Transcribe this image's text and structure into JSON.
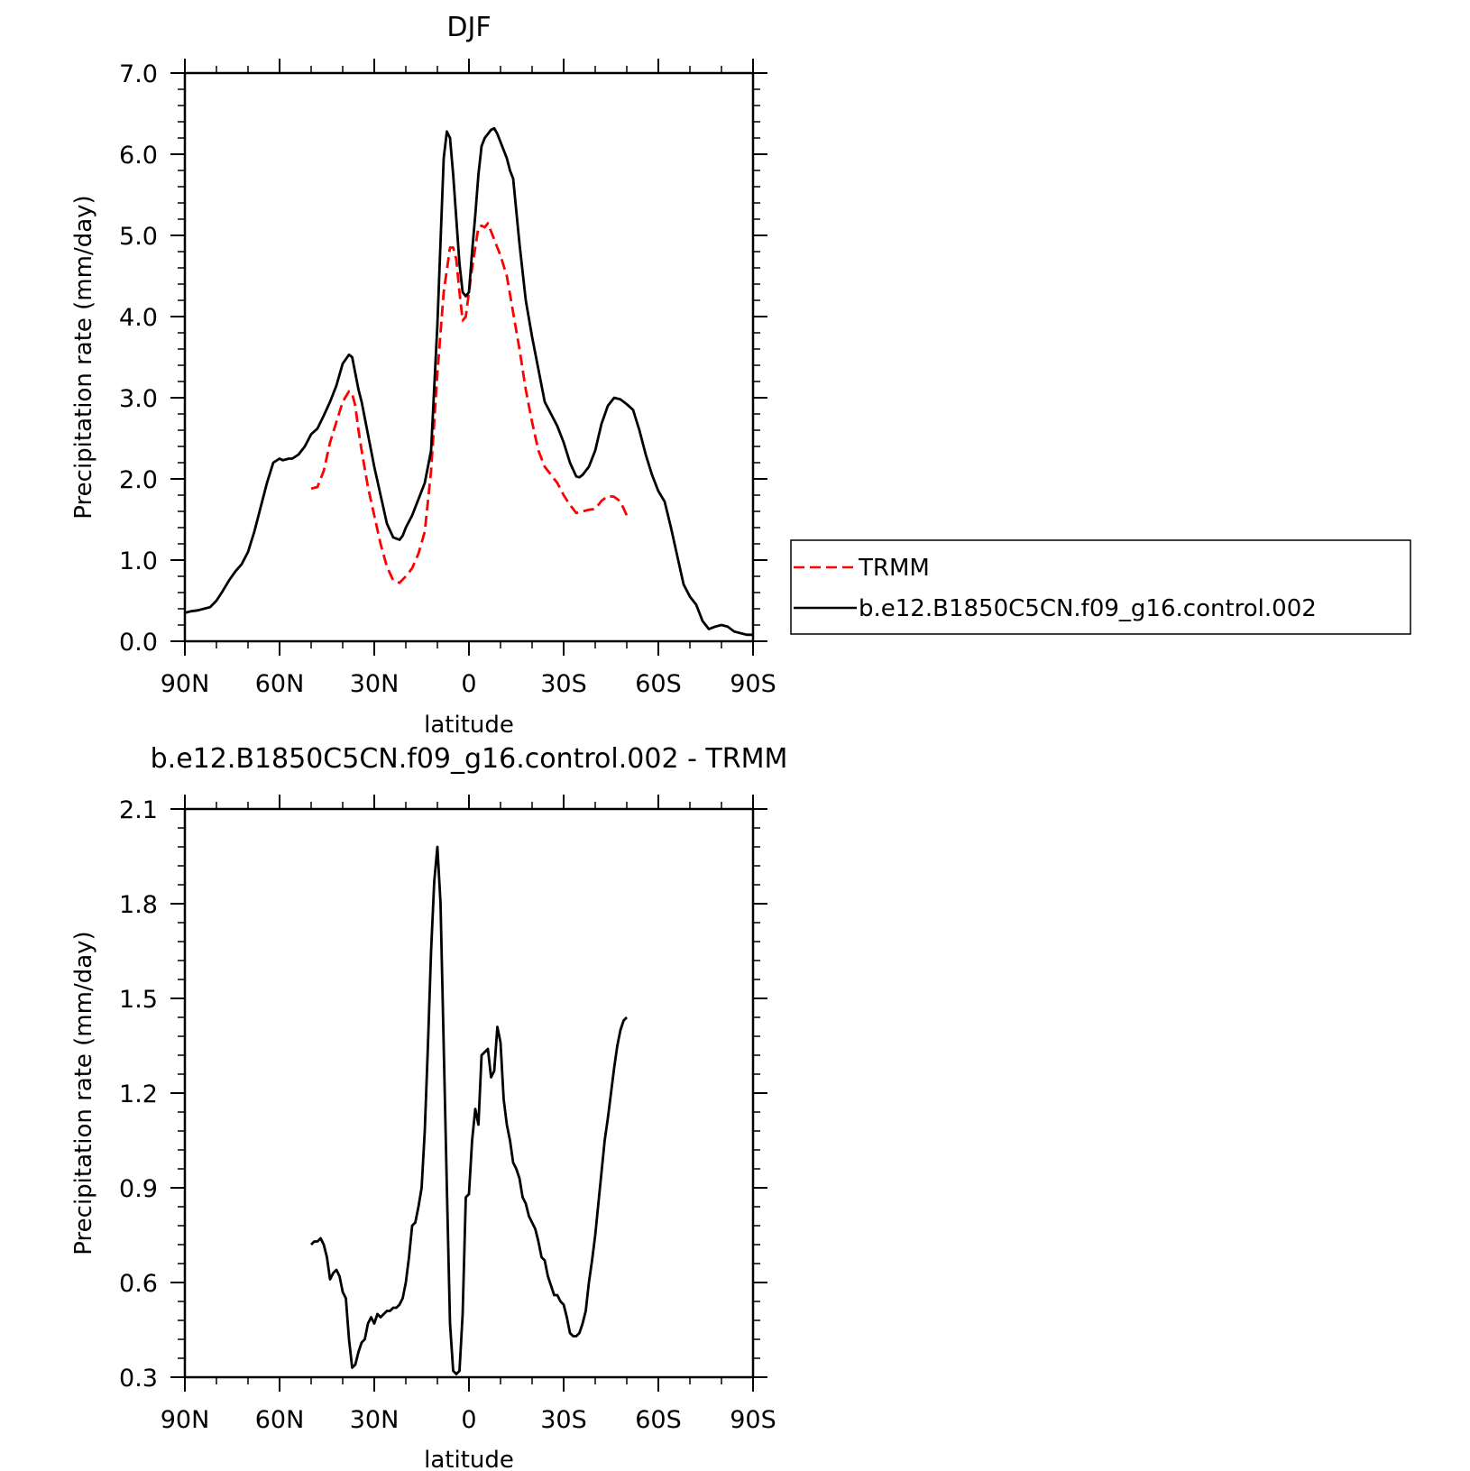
{
  "chart_data": [
    {
      "type": "line",
      "title": "DJF",
      "xlabel": "latitude",
      "ylabel": "Precipitation rate (mm/day)",
      "xlim": [
        90,
        -90
      ],
      "ylim": [
        0,
        7
      ],
      "xticks": [
        90,
        60,
        30,
        0,
        -30,
        -60,
        -90
      ],
      "xtick_labels": [
        "90N",
        "60N",
        "30N",
        "0",
        "30S",
        "60S",
        "90S"
      ],
      "yticks": [
        0,
        1,
        2,
        3,
        4,
        5,
        6,
        7
      ],
      "ytick_labels": [
        "0.0",
        "1.0",
        "2.0",
        "3.0",
        "4.0",
        "5.0",
        "6.0",
        "7.0"
      ],
      "legend_position": "right",
      "series": [
        {
          "name": "TRMM",
          "color": "#ff0000",
          "dash": "dashed",
          "x": [
            50,
            48,
            46,
            44,
            42,
            40,
            38,
            37,
            36,
            35,
            34,
            32,
            30,
            28,
            26,
            24,
            22,
            20,
            18,
            16,
            14,
            12,
            10,
            8,
            6,
            5,
            4,
            3,
            2,
            1,
            0,
            -1,
            -2,
            -3,
            -4,
            -5,
            -6,
            -7,
            -8,
            -10,
            -12,
            -14,
            -16,
            -18,
            -20,
            -22,
            -24,
            -26,
            -28,
            -30,
            -32,
            -34,
            -36,
            -38,
            -40,
            -42,
            -44,
            -46,
            -48,
            -50
          ],
          "values": [
            1.88,
            1.9,
            2.1,
            2.45,
            2.7,
            2.95,
            3.08,
            3.05,
            2.9,
            2.6,
            2.35,
            1.9,
            1.55,
            1.2,
            0.92,
            0.75,
            0.72,
            0.8,
            0.9,
            1.08,
            1.35,
            2.1,
            3.3,
            4.3,
            4.85,
            4.85,
            4.7,
            4.3,
            3.95,
            4.0,
            4.3,
            4.6,
            4.85,
            5.1,
            5.12,
            5.1,
            5.15,
            5.05,
            4.95,
            4.75,
            4.5,
            4.05,
            3.6,
            3.1,
            2.7,
            2.35,
            2.15,
            2.05,
            1.95,
            1.8,
            1.68,
            1.58,
            1.6,
            1.62,
            1.63,
            1.73,
            1.79,
            1.78,
            1.72,
            1.55
          ]
        },
        {
          "name": "b.e12.B1850C5CN.f09_g16.control.002",
          "color": "#000000",
          "dash": "solid",
          "x": [
            90,
            88,
            86,
            84,
            82,
            80,
            78,
            76,
            74,
            72,
            70,
            68,
            66,
            64,
            62,
            60,
            59,
            58,
            57,
            56,
            54,
            52,
            50,
            48,
            46,
            44,
            42,
            40,
            38,
            37,
            36,
            35,
            34,
            32,
            30,
            28,
            26,
            24,
            22,
            21,
            20,
            18,
            16,
            14,
            12,
            10,
            8,
            7,
            6,
            5,
            4,
            3,
            2,
            1,
            0,
            -1,
            -2,
            -3,
            -4,
            -5,
            -6,
            -7,
            -8,
            -9,
            -10,
            -11,
            -12,
            -13,
            -14,
            -16,
            -18,
            -20,
            -22,
            -24,
            -26,
            -28,
            -30,
            -32,
            -34,
            -35,
            -36,
            -38,
            -40,
            -42,
            -44,
            -46,
            -48,
            -50,
            -52,
            -54,
            -56,
            -58,
            -60,
            -62,
            -64,
            -66,
            -68,
            -70,
            -72,
            -74,
            -76,
            -78,
            -80,
            -82,
            -84,
            -86,
            -88,
            -90
          ],
          "values": [
            0.35,
            0.37,
            0.38,
            0.4,
            0.42,
            0.5,
            0.62,
            0.75,
            0.86,
            0.95,
            1.1,
            1.35,
            1.65,
            1.95,
            2.2,
            2.25,
            2.23,
            2.24,
            2.25,
            2.25,
            2.3,
            2.4,
            2.55,
            2.62,
            2.78,
            2.95,
            3.15,
            3.42,
            3.53,
            3.5,
            3.3,
            3.1,
            2.95,
            2.55,
            2.15,
            1.8,
            1.45,
            1.28,
            1.25,
            1.3,
            1.4,
            1.55,
            1.75,
            1.95,
            2.35,
            3.9,
            5.95,
            6.28,
            6.2,
            5.75,
            5.2,
            4.65,
            4.3,
            4.25,
            4.3,
            4.8,
            5.25,
            5.75,
            6.1,
            6.2,
            6.25,
            6.3,
            6.32,
            6.25,
            6.15,
            6.05,
            5.95,
            5.8,
            5.7,
            4.9,
            4.2,
            3.75,
            3.35,
            2.95,
            2.8,
            2.65,
            2.45,
            2.2,
            2.03,
            2.02,
            2.05,
            2.15,
            2.35,
            2.68,
            2.9,
            3.0,
            2.98,
            2.92,
            2.85,
            2.6,
            2.3,
            2.05,
            1.85,
            1.72,
            1.4,
            1.05,
            0.7,
            0.55,
            0.45,
            0.25,
            0.15,
            0.18,
            0.2,
            0.18,
            0.12,
            0.1,
            0.08,
            0.08
          ]
        }
      ]
    },
    {
      "type": "line",
      "title": "b.e12.B1850C5CN.f09_g16.control.002 - TRMM",
      "xlabel": "latitude",
      "ylabel": "Precipitation rate (mm/day)",
      "xlim": [
        90,
        -90
      ],
      "ylim": [
        0.3,
        2.1
      ],
      "xticks": [
        90,
        60,
        30,
        0,
        -30,
        -60,
        -90
      ],
      "xtick_labels": [
        "90N",
        "60N",
        "30N",
        "0",
        "30S",
        "60S",
        "90S"
      ],
      "yticks": [
        0.3,
        0.6,
        0.9,
        1.2,
        1.5,
        1.8,
        2.1
      ],
      "ytick_labels": [
        "0.3",
        "0.6",
        "0.9",
        "1.2",
        "1.5",
        "1.8",
        "2.1"
      ],
      "series": [
        {
          "color": "#000000",
          "dash": "solid",
          "x": [
            50,
            49,
            48,
            47,
            46,
            45,
            44,
            43,
            42,
            41,
            40,
            39,
            38,
            37,
            36,
            35,
            34,
            33,
            32,
            31,
            30,
            29,
            28,
            27,
            26,
            25,
            24,
            23,
            22,
            21,
            20,
            19,
            18,
            17,
            16,
            15,
            14,
            13,
            12,
            11,
            10,
            9,
            8,
            7,
            6,
            5,
            4,
            3,
            2,
            1,
            0,
            -1,
            -2,
            -3,
            -4,
            -5,
            -6,
            -7,
            -8,
            -9,
            -10,
            -11,
            -12,
            -13,
            -14,
            -15,
            -16,
            -17,
            -18,
            -19,
            -20,
            -21,
            -22,
            -23,
            -24,
            -25,
            -26,
            -27,
            -28,
            -29,
            -30,
            -31,
            -32,
            -33,
            -34,
            -35,
            -36,
            -37,
            -38,
            -39,
            -40,
            -41,
            -42,
            -43,
            -44,
            -45,
            -46,
            -47,
            -48,
            -49,
            -50
          ],
          "values": [
            0.72,
            0.73,
            0.73,
            0.74,
            0.72,
            0.68,
            0.61,
            0.63,
            0.64,
            0.62,
            0.57,
            0.55,
            0.42,
            0.33,
            0.34,
            0.38,
            0.41,
            0.42,
            0.47,
            0.49,
            0.47,
            0.5,
            0.49,
            0.5,
            0.51,
            0.51,
            0.52,
            0.52,
            0.53,
            0.55,
            0.6,
            0.68,
            0.78,
            0.79,
            0.84,
            0.9,
            1.08,
            1.35,
            1.65,
            1.87,
            1.98,
            1.8,
            1.35,
            0.9,
            0.47,
            0.32,
            0.31,
            0.32,
            0.5,
            0.87,
            0.88,
            1.05,
            1.15,
            1.1,
            1.32,
            1.33,
            1.34,
            1.25,
            1.27,
            1.41,
            1.36,
            1.18,
            1.1,
            1.05,
            0.98,
            0.96,
            0.93,
            0.87,
            0.85,
            0.81,
            0.79,
            0.77,
            0.73,
            0.68,
            0.67,
            0.62,
            0.59,
            0.56,
            0.56,
            0.54,
            0.53,
            0.49,
            0.44,
            0.43,
            0.43,
            0.44,
            0.47,
            0.51,
            0.6,
            0.67,
            0.75,
            0.85,
            0.95,
            1.05,
            1.12,
            1.2,
            1.28,
            1.35,
            1.4,
            1.43,
            1.44
          ]
        }
      ]
    }
  ]
}
